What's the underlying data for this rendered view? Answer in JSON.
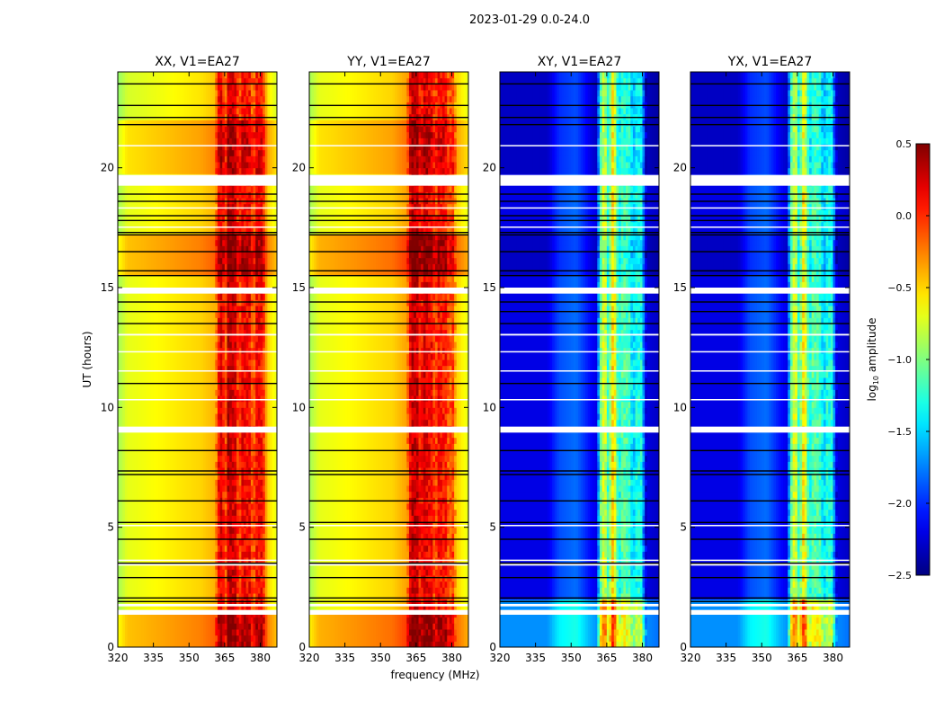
{
  "chart_data": {
    "type": "heatmap",
    "title": "2023-01-29 0.0-24.0",
    "xlabel": "frequency (MHz)",
    "ylabel": "UT (hours)",
    "xlim": [
      320,
      387
    ],
    "ylim": [
      0,
      24
    ],
    "xticks": [
      "320",
      "335",
      "350",
      "365",
      "380"
    ],
    "xtick_values": [
      320,
      335,
      350,
      365,
      380
    ],
    "yticks": [
      "0",
      "5",
      "10",
      "15",
      "20"
    ],
    "ytick_values": [
      0,
      5,
      10,
      15,
      20
    ],
    "colorbar": {
      "label_main": "log",
      "label_sub": "10",
      "label_rest": " amplitude",
      "range": [
        -2.5,
        0.5
      ],
      "ticks": [
        "0.5",
        "0.0",
        "−0.5",
        "−1.0",
        "−1.5",
        "−2.0",
        "−2.5"
      ],
      "tick_values": [
        0.5,
        0.0,
        -0.5,
        -1.0,
        -1.5,
        -2.0,
        -2.5
      ],
      "colormap": "jet"
    },
    "panels": [
      {
        "title": "XX, V1=EA27",
        "profile": [
          [
            320,
            -0.9
          ],
          [
            324,
            -0.7
          ],
          [
            340,
            -0.6
          ],
          [
            355,
            -0.5
          ],
          [
            361,
            -0.4
          ],
          [
            363,
            0.25
          ],
          [
            365.5,
            -0.1
          ],
          [
            366.5,
            0.3
          ],
          [
            370,
            0.2
          ],
          [
            371,
            -0.2
          ],
          [
            372,
            0.15
          ],
          [
            376,
            0.1
          ],
          [
            377,
            -0.3
          ],
          [
            378,
            0.1
          ],
          [
            381,
            0.1
          ],
          [
            383,
            -0.5
          ],
          [
            387,
            -0.7
          ]
        ],
        "time_offsets": [
          [
            0,
            1.5,
            0.25
          ],
          [
            15.4,
            17.2,
            0.25
          ],
          [
            19.6,
            22,
            0.15
          ],
          [
            22,
            24,
            -0.05
          ]
        ]
      },
      {
        "title": "YY, V1=EA27",
        "profile": [
          [
            320,
            -0.9
          ],
          [
            324,
            -0.7
          ],
          [
            340,
            -0.6
          ],
          [
            355,
            -0.5
          ],
          [
            361,
            -0.35
          ],
          [
            363,
            0.3
          ],
          [
            366,
            0.25
          ],
          [
            367,
            -0.1
          ],
          [
            368,
            0.25
          ],
          [
            372,
            0.1
          ],
          [
            373,
            -0.2
          ],
          [
            374,
            0.1
          ],
          [
            378,
            0.05
          ],
          [
            379,
            -0.3
          ],
          [
            380,
            0.05
          ],
          [
            382,
            -0.5
          ],
          [
            387,
            -0.7
          ]
        ],
        "time_offsets": [
          [
            0,
            1.5,
            0.3
          ],
          [
            15.4,
            17.2,
            0.3
          ],
          [
            19.6,
            22,
            0.15
          ]
        ]
      },
      {
        "title": "XY, V1=EA27",
        "profile": [
          [
            320,
            -2.2
          ],
          [
            340,
            -2.2
          ],
          [
            345,
            -1.9
          ],
          [
            352,
            -1.8
          ],
          [
            358,
            -2.1
          ],
          [
            361,
            -2.2
          ],
          [
            362,
            -1.2
          ],
          [
            364,
            -0.6
          ],
          [
            366,
            -1.4
          ],
          [
            367,
            -0.4
          ],
          [
            369,
            -0.8
          ],
          [
            370,
            -1.5
          ],
          [
            371,
            -1.1
          ],
          [
            375,
            -1.2
          ],
          [
            376,
            -1.6
          ],
          [
            377,
            -1.3
          ],
          [
            380,
            -1.3
          ],
          [
            381,
            -2.2
          ],
          [
            387,
            -2.3
          ]
        ],
        "time_offsets": [
          [
            0,
            2,
            0.5
          ],
          [
            19.6,
            24,
            -0.1
          ],
          [
            15.4,
            17.2,
            -0.1
          ]
        ]
      },
      {
        "title": "YX, V1=EA27",
        "profile": [
          [
            320,
            -2.2
          ],
          [
            340,
            -2.2
          ],
          [
            345,
            -1.9
          ],
          [
            352,
            -1.8
          ],
          [
            358,
            -2.1
          ],
          [
            361,
            -2.2
          ],
          [
            362,
            -1.2
          ],
          [
            364,
            -0.6
          ],
          [
            366,
            -1.4
          ],
          [
            367,
            -0.5
          ],
          [
            369,
            -0.8
          ],
          [
            370,
            -1.5
          ],
          [
            371,
            -1.1
          ],
          [
            375,
            -1.2
          ],
          [
            376,
            -1.6
          ],
          [
            377,
            -1.3
          ],
          [
            380,
            -1.3
          ],
          [
            381,
            -2.2
          ],
          [
            387,
            -2.3
          ]
        ],
        "time_offsets": [
          [
            0,
            2,
            0.5
          ],
          [
            19.6,
            24,
            -0.1
          ],
          [
            15.4,
            17.2,
            -0.1
          ]
        ]
      }
    ],
    "flagged_white": [
      [
        19.25,
        19.7
      ],
      [
        14.75,
        15.0
      ],
      [
        1.35,
        1.55
      ],
      [
        1.7,
        1.8
      ],
      [
        8.95,
        9.2
      ],
      [
        20.9,
        20.95
      ],
      [
        13.0,
        13.07
      ],
      [
        12.3,
        12.35
      ],
      [
        11.5,
        11.55
      ],
      [
        10.3,
        10.35
      ],
      [
        3.4,
        3.48
      ],
      [
        3.6,
        3.65
      ],
      [
        5.05,
        5.1
      ],
      [
        17.5,
        17.55
      ],
      [
        18.3,
        18.35
      ]
    ],
    "flagged_black": [
      23.5,
      22.6,
      22.1,
      21.8,
      18.9,
      18.6,
      18.0,
      17.8,
      17.3,
      17.2,
      16.5,
      15.7,
      15.5,
      14.4,
      14.0,
      13.5,
      11.0,
      8.2,
      7.35,
      7.2,
      6.1,
      5.2,
      4.5,
      3.5,
      2.9,
      2.05,
      1.9
    ]
  }
}
